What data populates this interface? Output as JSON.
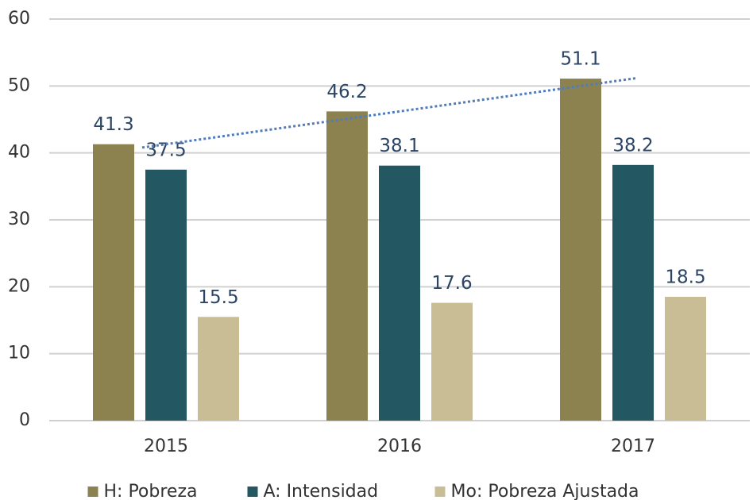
{
  "chart_data": {
    "type": "bar",
    "categories": [
      "2015",
      "2016",
      "2017"
    ],
    "series": [
      {
        "name": "H: Pobreza",
        "color": "#8c8250",
        "values": [
          41.3,
          46.2,
          51.1
        ],
        "trendline": true,
        "trendline_color": "#4f7cba"
      },
      {
        "name": "A: Intensidad",
        "color": "#235762",
        "values": [
          37.5,
          38.1,
          38.2
        ]
      },
      {
        "name": "Mo: Pobreza Ajustada",
        "color": "#c8bd94",
        "values": [
          15.5,
          17.6,
          18.5
        ]
      }
    ],
    "ylim": [
      0,
      60
    ],
    "yticks": [
      0,
      10,
      20,
      30,
      40,
      50,
      60
    ],
    "grid": true,
    "legend": "bottom"
  }
}
